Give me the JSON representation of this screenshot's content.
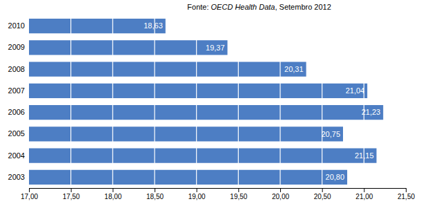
{
  "chart_data": {
    "type": "bar",
    "orientation": "horizontal",
    "categories": [
      "2010",
      "2009",
      "2008",
      "2007",
      "2006",
      "2005",
      "2004",
      "2003"
    ],
    "values": [
      18.63,
      19.37,
      20.31,
      21.04,
      21.23,
      20.75,
      21.15,
      20.8
    ],
    "value_labels": [
      "18,63",
      "19,37",
      "20,31",
      "21,04",
      "21,23",
      "20,75",
      "21,15",
      "20,80"
    ],
    "data_labels": true,
    "color": "#4d7ec4",
    "xlim": [
      17.0,
      21.5
    ],
    "xticks": [
      {
        "value": 17.0,
        "label": "17,00"
      },
      {
        "value": 17.5,
        "label": "17,50"
      },
      {
        "value": 18.0,
        "label": "18,00"
      },
      {
        "value": 18.5,
        "label": "18,50"
      },
      {
        "value": 19.0,
        "label": "19,00"
      },
      {
        "value": 19.5,
        "label": "19,50"
      },
      {
        "value": 20.0,
        "label": "20,00"
      },
      {
        "value": 20.5,
        "label": "20,50"
      },
      {
        "value": 21.0,
        "label": "21,00"
      },
      {
        "value": 21.5,
        "label": "21,50"
      }
    ],
    "grid": true,
    "annotations": [
      "Fonte: ",
      "OECD Health Data",
      ", Setembro 2012"
    ]
  }
}
